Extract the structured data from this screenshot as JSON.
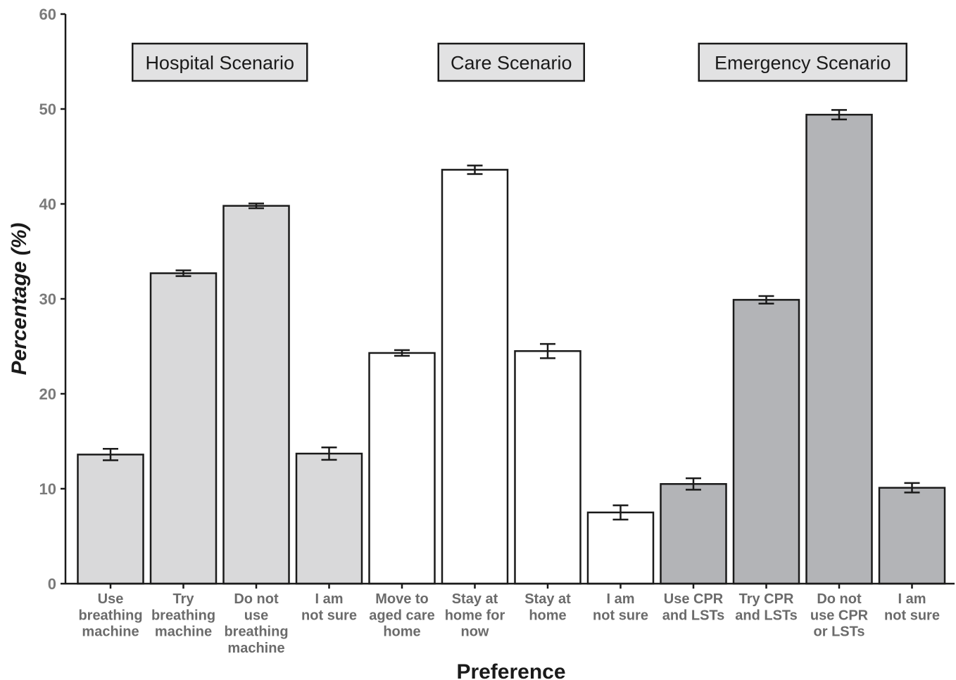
{
  "chart_data": {
    "type": "bar",
    "xlabel": "Preference",
    "ylabel": "Percentage (%)",
    "ylim": [
      0,
      60
    ],
    "yticks": [
      0,
      10,
      20,
      30,
      40,
      50,
      60
    ],
    "grid": false,
    "groups": [
      {
        "label": "Hospital Scenario",
        "color": "#d9d9da",
        "bars": [
          {
            "category": [
              "Use",
              "breathing",
              "machine"
            ],
            "value": 13.6,
            "error": 0.6
          },
          {
            "category": [
              "Try",
              "breathing",
              "machine"
            ],
            "value": 32.7,
            "error": 0.3
          },
          {
            "category": [
              "Do not",
              "use",
              "breathing",
              "machine"
            ],
            "value": 39.8,
            "error": 0.25
          },
          {
            "category": [
              "I am",
              "not sure"
            ],
            "value": 13.7,
            "error": 0.65
          }
        ]
      },
      {
        "label": "Care Scenario",
        "color": "#ffffff",
        "bars": [
          {
            "category": [
              "Move to",
              "aged care",
              "home"
            ],
            "value": 24.3,
            "error": 0.3
          },
          {
            "category": [
              "Stay at",
              "home for",
              "now"
            ],
            "value": 43.6,
            "error": 0.45
          },
          {
            "category": [
              "Stay at",
              "home"
            ],
            "value": 24.5,
            "error": 0.75
          },
          {
            "category": [
              "I am",
              "not sure"
            ],
            "value": 7.5,
            "error": 0.75
          }
        ]
      },
      {
        "label": "Emergency Scenario",
        "color": "#b3b4b7",
        "bars": [
          {
            "category": [
              "Use CPR",
              "and LSTs"
            ],
            "value": 10.5,
            "error": 0.6
          },
          {
            "category": [
              "Try CPR",
              "and LSTs"
            ],
            "value": 29.9,
            "error": 0.4
          },
          {
            "category": [
              "Do not",
              "use CPR",
              "or LSTs"
            ],
            "value": 49.4,
            "error": 0.5
          },
          {
            "category": [
              "I am",
              "not sure"
            ],
            "value": 10.1,
            "error": 0.5
          }
        ]
      }
    ]
  }
}
